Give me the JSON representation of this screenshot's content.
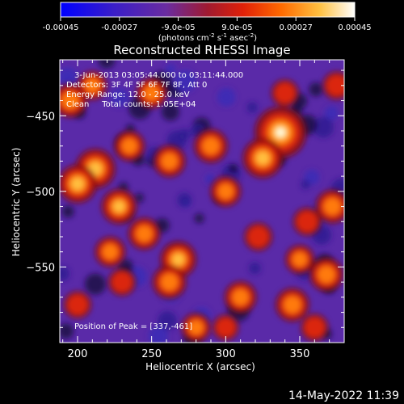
{
  "colorbar": {
    "ticks": [
      "-0.00045",
      "-0.00027",
      "-9.0e-05",
      "9.0e-05",
      "0.00027",
      "0.00045"
    ],
    "units_main": "(photons cm",
    "units_sup1": "-2",
    "units_mid": " s",
    "units_sup2": "-1",
    "units_mid2": " asec",
    "units_sup3": "-2",
    "units_end": ")"
  },
  "image_info": {
    "line1": "3-Jun-2013 03:05:44.000 to 03:11:44.000",
    "line2": "Detectors: 3F 4F 5F 6F 7F 8F, Att 0",
    "line3": "Energy Range: 12.0 - 25.0 keV",
    "line4": "Clean     Total counts: 1.05E+04",
    "peak": "Position of Peak = [337,-461]"
  },
  "timestamp": "14-May-2022 11:39",
  "colors": {
    "background": "#000000",
    "low": "#5a2aa8",
    "mid": "#d32a10",
    "high": "#ffd040",
    "peak": "#fffbe0"
  },
  "chart_data": {
    "type": "heatmap",
    "title": "Reconstructed RHESSI Image",
    "xlabel": "Heliocentric X (arcsec)",
    "ylabel": "Heliocentric Y (arcsec)",
    "xlim": [
      188,
      380
    ],
    "ylim": [
      -600,
      -413
    ],
    "x_ticks": [
      200,
      250,
      300,
      350
    ],
    "y_ticks": [
      -450,
      -500,
      -550
    ],
    "colorbar_range": [
      -0.00045,
      0.00045
    ],
    "peak": [
      337,
      -461
    ],
    "blobs": [
      {
        "x": 337,
        "y": -461,
        "intensity": 0.00045
      },
      {
        "x": 325,
        "y": -478,
        "intensity": 0.0003
      },
      {
        "x": 290,
        "y": -470,
        "intensity": 0.00022
      },
      {
        "x": 212,
        "y": -485,
        "intensity": 0.0003
      },
      {
        "x": 200,
        "y": -495,
        "intensity": 0.00028
      },
      {
        "x": 228,
        "y": -510,
        "intensity": 0.00024
      },
      {
        "x": 195,
        "y": -440,
        "intensity": 0.00022
      },
      {
        "x": 235,
        "y": -470,
        "intensity": 0.00018
      },
      {
        "x": 262,
        "y": -480,
        "intensity": 0.0002
      },
      {
        "x": 245,
        "y": -528,
        "intensity": 0.0002
      },
      {
        "x": 222,
        "y": -540,
        "intensity": 0.00018
      },
      {
        "x": 268,
        "y": -545,
        "intensity": 0.00025
      },
      {
        "x": 262,
        "y": -560,
        "intensity": 0.00022
      },
      {
        "x": 300,
        "y": -500,
        "intensity": 0.00018
      },
      {
        "x": 310,
        "y": -570,
        "intensity": 0.0002
      },
      {
        "x": 345,
        "y": -575,
        "intensity": 0.00022
      },
      {
        "x": 350,
        "y": -545,
        "intensity": 0.00016
      },
      {
        "x": 372,
        "y": -510,
        "intensity": 0.00022
      },
      {
        "x": 375,
        "y": -430,
        "intensity": 0.00015
      },
      {
        "x": 355,
        "y": -520,
        "intensity": 0.00015
      },
      {
        "x": 368,
        "y": -555,
        "intensity": 0.00022
      },
      {
        "x": 322,
        "y": -530,
        "intensity": 0.00015
      },
      {
        "x": 200,
        "y": -575,
        "intensity": 0.00014
      },
      {
        "x": 250,
        "y": -435,
        "intensity": 0.00018
      },
      {
        "x": 230,
        "y": -560,
        "intensity": 0.00014
      },
      {
        "x": 300,
        "y": -590,
        "intensity": 0.00012
      },
      {
        "x": 340,
        "y": -435,
        "intensity": 0.00014
      },
      {
        "x": 210,
        "y": -430,
        "intensity": 0.00016
      },
      {
        "x": 280,
        "y": -590,
        "intensity": 0.00016
      },
      {
        "x": 360,
        "y": -590,
        "intensity": 0.00014
      }
    ]
  }
}
